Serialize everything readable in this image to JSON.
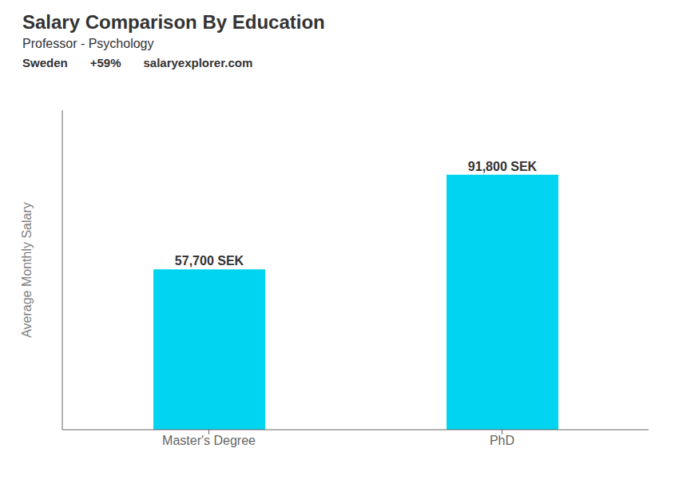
{
  "chart_data": {
    "type": "bar",
    "title": "Salary Comparison By Education",
    "subtitle": "Professor - Psychology",
    "annotations": [
      "Sweden",
      "+59%",
      "salaryexplorer.com"
    ],
    "y_label": "Average Monthly Salary",
    "categories": [
      "Master's Degree",
      "PhD"
    ],
    "values": [
      57700,
      91800
    ],
    "value_labels": [
      "57,700 SEK",
      "91,800 SEK"
    ],
    "data_labels": true,
    "color": "#00d4f0",
    "ylim": [
      0,
      115000
    ],
    "grid": false,
    "tick_labels": "x"
  }
}
